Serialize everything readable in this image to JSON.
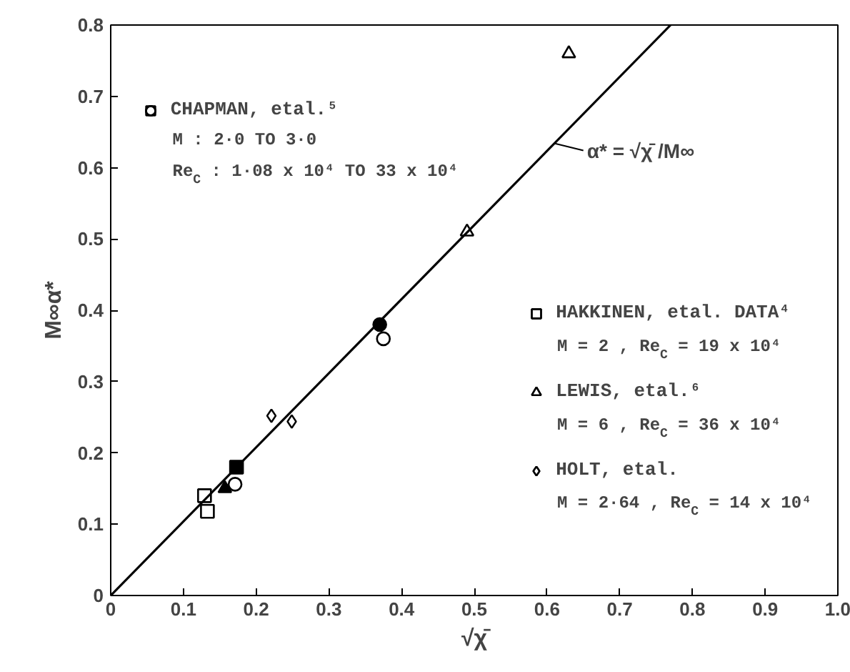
{
  "chart_data": {
    "type": "scatter",
    "xlabel": "√χ̄",
    "ylabel": "M∞α*",
    "xlim": [
      0,
      1.0
    ],
    "ylim": [
      0,
      0.8
    ],
    "xticks": [
      0,
      0.1,
      0.2,
      0.3,
      0.4,
      0.5,
      0.6,
      0.7,
      0.8,
      0.9,
      {
        "value": 1.0,
        "label": "1.0"
      }
    ],
    "yticks": [
      0,
      0.1,
      0.2,
      0.3,
      0.4,
      0.5,
      0.6,
      0.7,
      0.8
    ],
    "grid": false,
    "legend": "right",
    "series": [
      {
        "name": "CHAPMAN, etal.⁵",
        "color": "#000000",
        "x": [
          0.173,
          0.171,
          0.157,
          0.37,
          0.375
        ],
        "values": [
          0.18,
          0.156,
          0.15,
          0.38,
          0.36
        ],
        "marker": [
          "square",
          "circle",
          "triangle",
          "circle",
          "circle"
        ],
        "colors": [
          "#000000",
          "#ffffff",
          "#000000",
          "#000000",
          "#ffffff"
        ]
      },
      {
        "name": "HAKKINEN, etal. DATA⁴",
        "color": "#000000",
        "x": [
          0.129,
          0.133
        ],
        "values": [
          0.14,
          0.118
        ],
        "marker": "square"
      },
      {
        "name": "LEWIS, etal.⁶",
        "color": "#000000",
        "x": [
          0.49,
          0.63
        ],
        "values": [
          0.51,
          0.76
        ],
        "marker": "triangle"
      },
      {
        "name": "HOLT, etal.",
        "color": "#000000",
        "x": [
          0.221,
          0.249
        ],
        "values": [
          0.252,
          0.244
        ],
        "marker": "diamond"
      },
      {
        "type": "line",
        "color": "#000000",
        "x": [
          0,
          0.77
        ],
        "values": [
          0,
          0.8
        ],
        "line_style": "solid"
      }
    ],
    "annotations": [
      "M : 2·0  TO 3·0",
      "Re$_{C}$ : 1·08 x 10⁴ TO 33 x 10⁴",
      "M = 2 , Re$_{C}$ = 19 x 10⁴",
      "M = 6 , Re$_{C}$ = 36 x 10⁴",
      "M = 2·64 , Re$_{C}$ = 14 x 10⁴",
      {
        "text": "α* = √χ̄ /M∞",
        "x": 0.61,
        "y": 0.634
      }
    ]
  }
}
